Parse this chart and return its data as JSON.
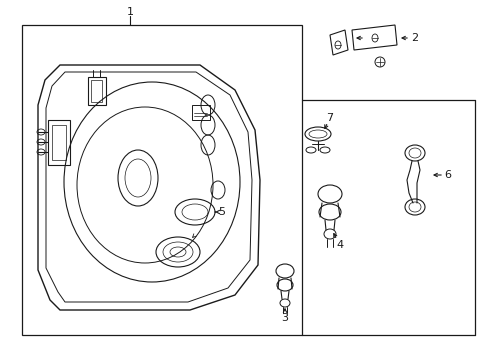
{
  "bg_color": "#ffffff",
  "line_color": "#1a1a1a",
  "fig_width": 4.89,
  "fig_height": 3.6,
  "dpi": 100,
  "lw_main": 0.9,
  "lw_thin": 0.6
}
